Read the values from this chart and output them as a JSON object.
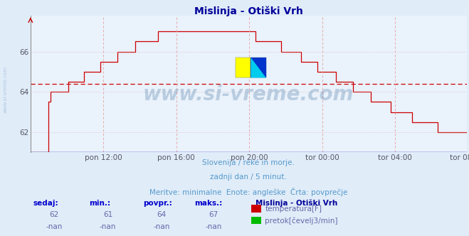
{
  "title": "Mislinja - Otiški Vrh",
  "background_color": "#e0ecf8",
  "plot_bg_color": "#eaf2fb",
  "grid_color_v": "#e8b0b0",
  "grid_color_h": "#d8c8c8",
  "line_color": "#cc0000",
  "avg_line_color": "#cc0000",
  "avg_line_value": 64.4,
  "x_labels": [
    "pon 12:00",
    "pon 16:00",
    "pon 20:00",
    "tor 00:00",
    "tor 04:00",
    "tor 08:00"
  ],
  "x_tick_positions": [
    48,
    96,
    144,
    192,
    240,
    287
  ],
  "x_total_points": 288,
  "ylim_min": 61.0,
  "ylim_max": 67.8,
  "yticks": [
    62,
    64,
    66
  ],
  "watermark": "www.si-vreme.com",
  "subtitle1": "Slovenija / reke in morje.",
  "subtitle2": "zadnji dan / 5 minut.",
  "subtitle3": "Meritve: minimalne  Enote: angleške  Črta: povprečje",
  "subtitle_color": "#5599cc",
  "table_headers": [
    "sedaj:",
    "min.:",
    "povpr.:",
    "maks.:"
  ],
  "table_values_temp": [
    "62",
    "61",
    "64",
    "67"
  ],
  "table_values_pretok": [
    "-nan",
    "-nan",
    "-nan",
    "-nan"
  ],
  "legend_label_temp": "temperatura[F]",
  "legend_label_pretok": "pretok[čevelj3/min]",
  "legend_color_temp": "#cc0000",
  "legend_color_pretok": "#00bb00",
  "station_label": "Mislinja - Otiški Vrh",
  "title_color": "#000099",
  "table_header_color": "#0000cc",
  "table_value_color": "#6666aa",
  "left_watermark_color": "#b0c8e0",
  "axis_color": "#aaaaaa"
}
